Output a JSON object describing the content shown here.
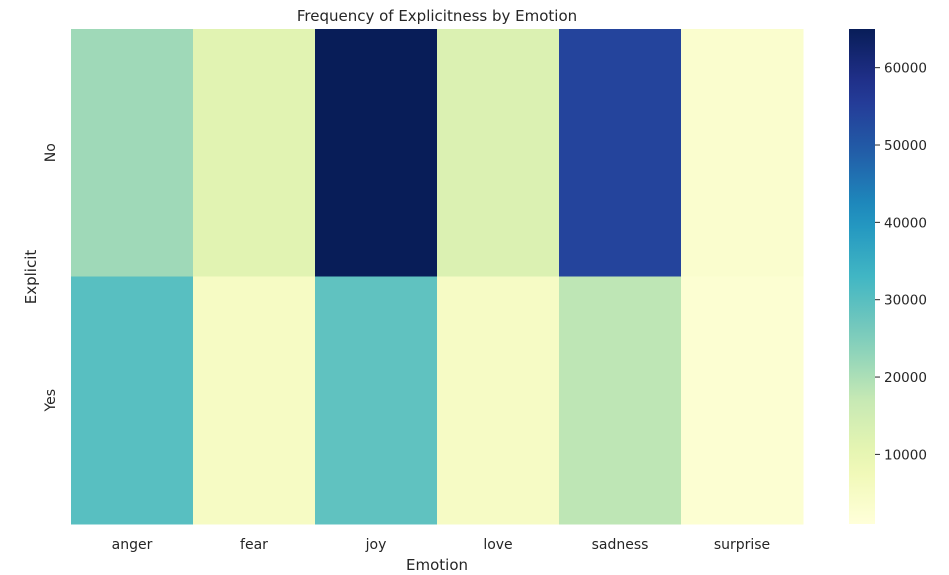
{
  "chart_data": {
    "type": "heatmap",
    "title": "Frequency of Explicitness by Emotion",
    "xlabel": "Emotion",
    "ylabel": "Explicit",
    "x_categories": [
      "anger",
      "fear",
      "joy",
      "love",
      "sadness",
      "surprise"
    ],
    "y_categories": [
      "No",
      "Yes"
    ],
    "values": [
      [
        21500,
        11500,
        65000,
        12800,
        54000,
        3200
      ],
      [
        30000,
        5200,
        29000,
        5100,
        18000,
        2500
      ]
    ],
    "colormap": "YlGnBu",
    "colorbar": {
      "range": [
        1000,
        65000
      ],
      "ticks": [
        10000,
        20000,
        30000,
        40000,
        50000,
        60000
      ],
      "tick_labels": [
        "10000",
        "20000",
        "30000",
        "40000",
        "50000",
        "60000"
      ]
    },
    "grid": false,
    "legend": "colorbar-right"
  }
}
